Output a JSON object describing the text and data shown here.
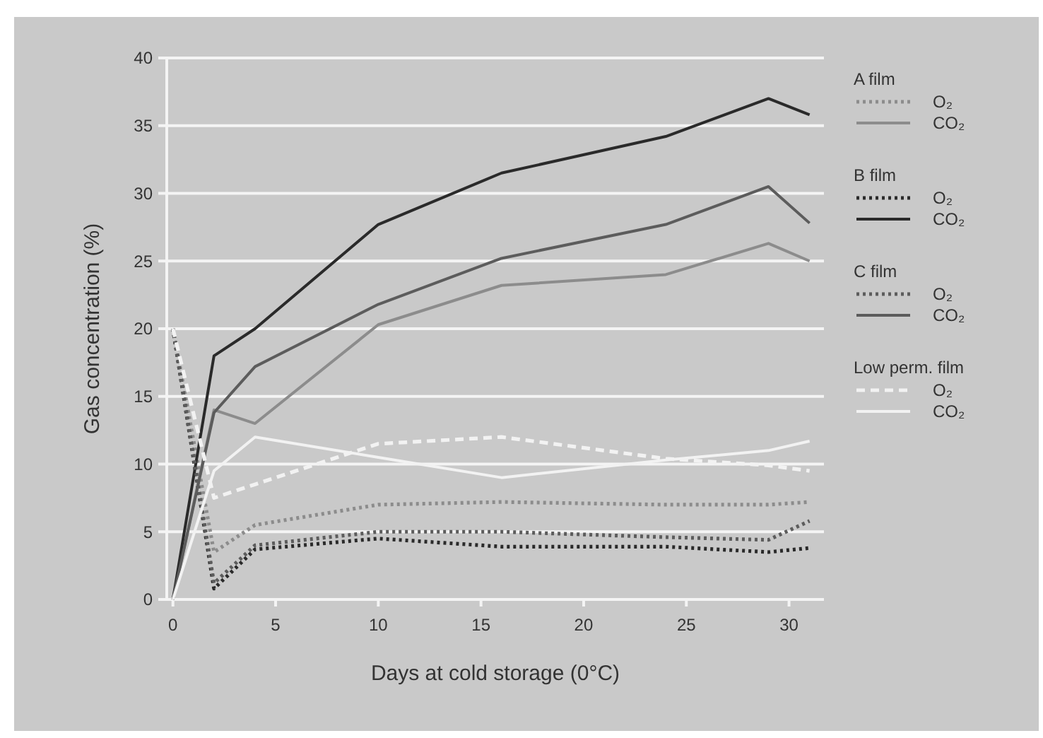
{
  "chart_data": {
    "type": "line",
    "xlabel": "Days at cold storage (0°C)",
    "ylabel": "Gas concentration (%)",
    "x": [
      0,
      2,
      4,
      10,
      16,
      24,
      29,
      31
    ],
    "xlim": [
      -0.3,
      31.7
    ],
    "ylim": [
      0,
      40
    ],
    "xticks": [
      0,
      5,
      10,
      15,
      20,
      25,
      30
    ],
    "yticks": [
      0,
      5,
      10,
      15,
      20,
      25,
      30,
      35,
      40
    ],
    "grid": "y",
    "legend": "right",
    "marker": "none",
    "annotations": [
      "A film",
      "B film",
      "C film",
      "Low perm. film"
    ],
    "series": [
      {
        "name": "O₂",
        "color": "#8c8c8c",
        "line_style": "dotted",
        "values": [
          20,
          3.5,
          5.5,
          7,
          7.2,
          7,
          7,
          7.2
        ]
      },
      {
        "name": "CO₂",
        "color": "#8c8c8c",
        "line_style": "solid",
        "values": [
          0,
          14,
          13,
          20.3,
          23.2,
          24,
          26.3,
          25
        ]
      },
      {
        "name": "O₂",
        "color": "#2a2a2a",
        "line_style": "dotted",
        "values": [
          20,
          0.8,
          3.7,
          4.5,
          3.9,
          3.9,
          3.5,
          3.8
        ]
      },
      {
        "name": "CO₂",
        "color": "#2a2a2a",
        "line_style": "solid",
        "values": [
          0,
          18,
          20,
          27.7,
          31.5,
          34.2,
          37,
          35.8
        ]
      },
      {
        "name": "O₂",
        "color": "#5c5c5c",
        "line_style": "dotted",
        "values": [
          20,
          1.2,
          4,
          5,
          5,
          4.6,
          4.4,
          5.8
        ]
      },
      {
        "name": "CO₂",
        "color": "#5c5c5c",
        "line_style": "solid",
        "values": [
          0,
          13.8,
          17.2,
          21.8,
          25.2,
          27.7,
          30.5,
          27.8
        ]
      },
      {
        "name": "O₂",
        "color": "#f2f2f2",
        "line_style": "dashed",
        "values": [
          20,
          7.5,
          8.5,
          11.5,
          12,
          10.4,
          9.9,
          9.5
        ]
      },
      {
        "name": "CO₂",
        "color": "#f2f2f2",
        "line_style": "solid",
        "values": [
          0,
          9.5,
          12,
          10.5,
          9,
          10.3,
          11,
          11.7
        ]
      }
    ]
  }
}
